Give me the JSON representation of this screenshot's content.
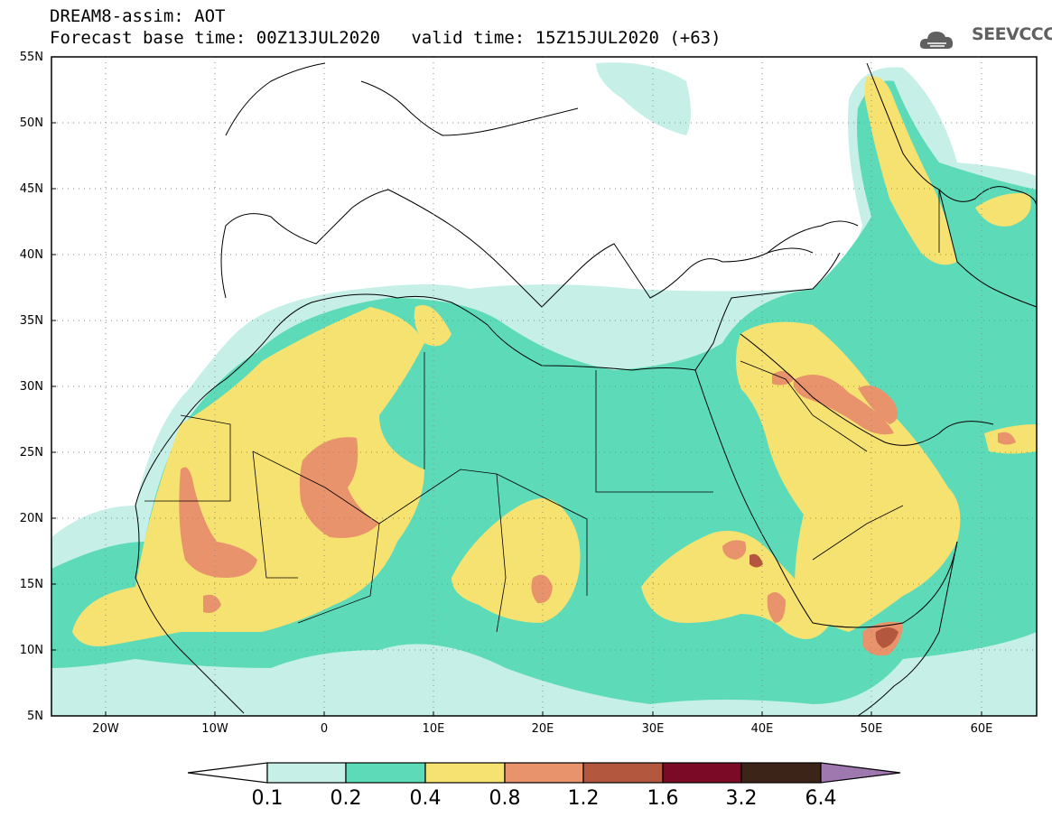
{
  "header": {
    "line1": "DREAM8-assim: AOT",
    "line2": "Forecast base time: 00Z13JUL2020   valid time: 15Z15JUL2020 (+63)"
  },
  "logo": {
    "text": "SEEVCCC",
    "icon": "cloud-logo-icon"
  },
  "axes": {
    "lat_labels": [
      "55N",
      "50N",
      "45N",
      "40N",
      "35N",
      "30N",
      "25N",
      "20N",
      "15N",
      "10N",
      "5N"
    ],
    "lon_labels": [
      "20W",
      "10W",
      "0",
      "10E",
      "20E",
      "30E",
      "40E",
      "50E",
      "60E"
    ],
    "lat_range": [
      5,
      55
    ],
    "lon_range": [
      -25,
      65
    ]
  },
  "legend": {
    "levels": [
      "0.1",
      "0.2",
      "0.4",
      "0.8",
      "1.2",
      "1.6",
      "3.2",
      "6.4"
    ],
    "colors": [
      "#c6f0e7",
      "#5ddbb8",
      "#f6e270",
      "#e8936b",
      "#b4573f",
      "#7a0a26",
      "#3d2418",
      "#a078b0"
    ]
  },
  "colors": {
    "level1": "#c6f0e7",
    "level2": "#5ddbb8",
    "level3": "#f6e270",
    "level4": "#e8936b",
    "level5": "#b4573f"
  }
}
